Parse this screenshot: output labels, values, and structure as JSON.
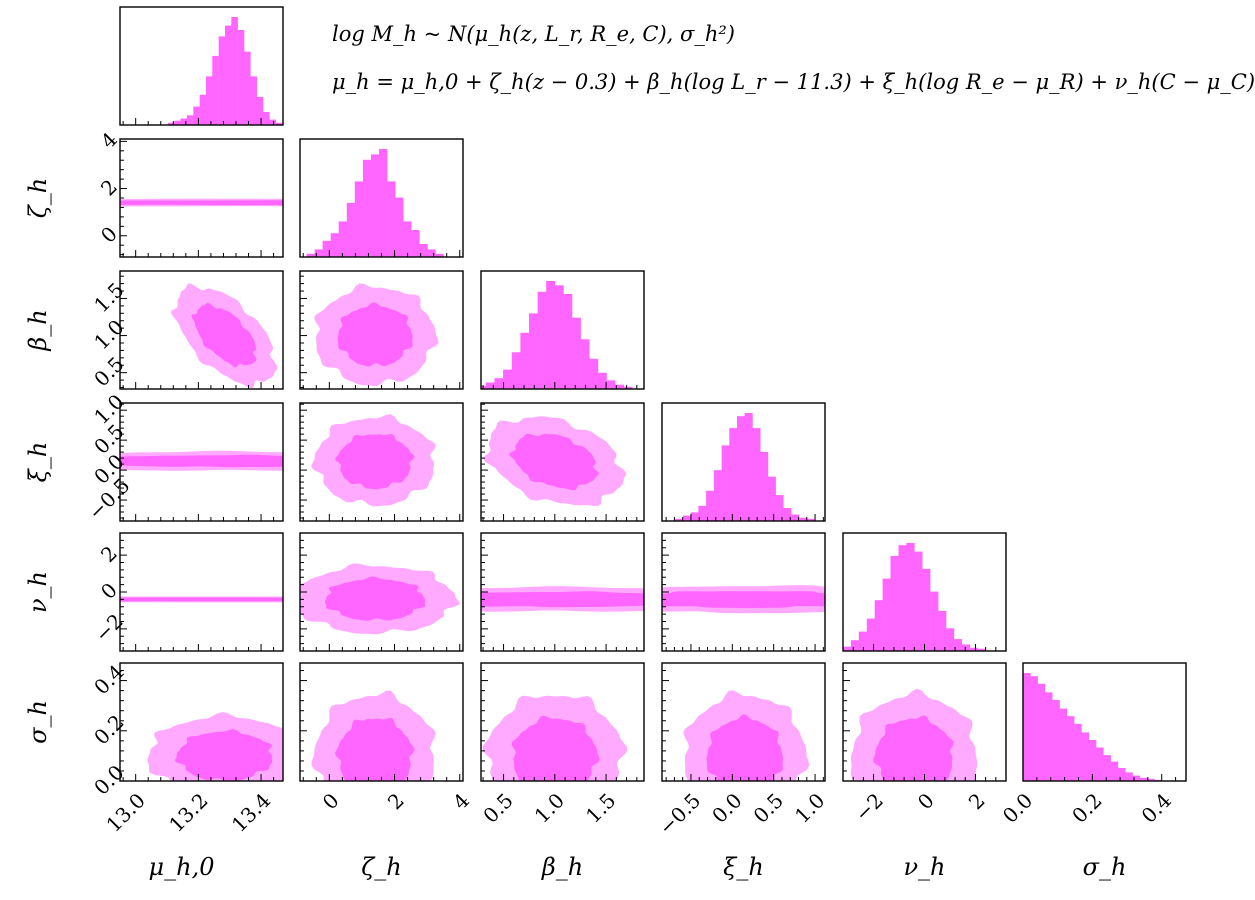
{
  "chart_data": {
    "type": "corner",
    "annotations": {
      "line1": "log M_h ~ N(μ_h(z, L_r, R_e, C), σ_h²)",
      "line2": "μ_h = μ_h,0 + ζ_h(z − 0.3) + β_h(log L_r − 11.3) + ξ_h(log R_e − μ_R) + ν_h(C − μ_C)"
    },
    "colors": {
      "inner": "#ff66ff",
      "outer": "#ffaaff",
      "hist": "#ff66ff"
    },
    "parameters": [
      {
        "key": "mu",
        "label": "μ_h,0",
        "ylabel": "",
        "range": [
          12.95,
          13.47
        ],
        "ticks": [
          13.0,
          13.2,
          13.4
        ],
        "tick_labels": [
          "13.0",
          "13.2",
          "13.4"
        ],
        "median": 13.285,
        "sigma": 0.065
      },
      {
        "key": "zeta",
        "label": "ζ_h",
        "ylabel": "ζ_h",
        "range": [
          -0.9,
          4.1
        ],
        "ticks": [
          0,
          2,
          4
        ],
        "tick_labels": [
          "0",
          "2",
          "4"
        ],
        "median": 1.4,
        "sigma": 0.75
      },
      {
        "key": "beta",
        "label": "β_h",
        "ylabel": "β_h",
        "range": [
          0.28,
          1.87
        ],
        "ticks": [
          0.5,
          1.0,
          1.5
        ],
        "tick_labels": [
          "0.5",
          "1.0",
          "1.5"
        ],
        "median": 1.0,
        "sigma": 0.27
      },
      {
        "key": "xi",
        "label": "ξ_h",
        "ylabel": "ξ_h",
        "range": [
          -0.85,
          1.12
        ],
        "ticks": [
          -0.5,
          0.0,
          0.5,
          1.0
        ],
        "tick_labels": [
          "−0.5",
          "0.0",
          "0.5",
          "1.0"
        ],
        "median": 0.15,
        "sigma": 0.3
      },
      {
        "key": "nu",
        "label": "ν_h",
        "ylabel": "ν_h",
        "range": [
          -3.2,
          3.2
        ],
        "ticks": [
          -2,
          0,
          2
        ],
        "tick_labels": [
          "−2",
          "0",
          "2"
        ],
        "median": -0.4,
        "sigma": 1.0
      },
      {
        "key": "sigma",
        "label": "σ_h",
        "ylabel": "σ_h",
        "range": [
          0.0,
          0.47
        ],
        "ticks": [
          0.0,
          0.2,
          0.4
        ],
        "tick_labels": [
          "0.0",
          "0.2",
          "0.4"
        ],
        "median": 0.1,
        "sigma": 0.1
      }
    ],
    "histograms": {
      "mu": [
        0.02,
        0.04,
        0.06,
        0.09,
        0.17,
        0.28,
        0.45,
        0.64,
        0.82,
        0.92,
        1.0,
        0.88,
        0.68,
        0.45,
        0.26,
        0.12,
        0.05,
        0.02
      ],
      "zeta": [
        0.03,
        0.07,
        0.15,
        0.22,
        0.33,
        0.5,
        0.7,
        0.9,
        0.95,
        1.0,
        0.7,
        0.55,
        0.33,
        0.25,
        0.12,
        0.07,
        0.03
      ],
      "beta": [
        0.03,
        0.06,
        0.1,
        0.18,
        0.34,
        0.52,
        0.7,
        0.9,
        1.0,
        0.96,
        0.88,
        0.66,
        0.46,
        0.28,
        0.15,
        0.08,
        0.04,
        0.02
      ],
      "xi": [
        0.02,
        0.05,
        0.08,
        0.14,
        0.28,
        0.47,
        0.7,
        0.86,
        0.97,
        1.0,
        0.86,
        0.64,
        0.41,
        0.24,
        0.12,
        0.06,
        0.03,
        0.02
      ],
      "nu": [
        0.04,
        0.1,
        0.18,
        0.3,
        0.47,
        0.67,
        0.88,
        0.98,
        1.0,
        0.92,
        0.76,
        0.55,
        0.37,
        0.21,
        0.11,
        0.06,
        0.03,
        0.02
      ],
      "sigma": [
        1.0,
        0.97,
        0.9,
        0.82,
        0.75,
        0.67,
        0.6,
        0.53,
        0.45,
        0.38,
        0.31,
        0.24,
        0.18,
        0.12,
        0.08,
        0.05,
        0.03,
        0.02,
        0.01
      ]
    },
    "correlations": [
      {
        "x": "mu",
        "y": "beta",
        "rho": -0.55
      },
      {
        "x": "beta",
        "y": "xi",
        "rho": -0.3
      }
    ]
  }
}
